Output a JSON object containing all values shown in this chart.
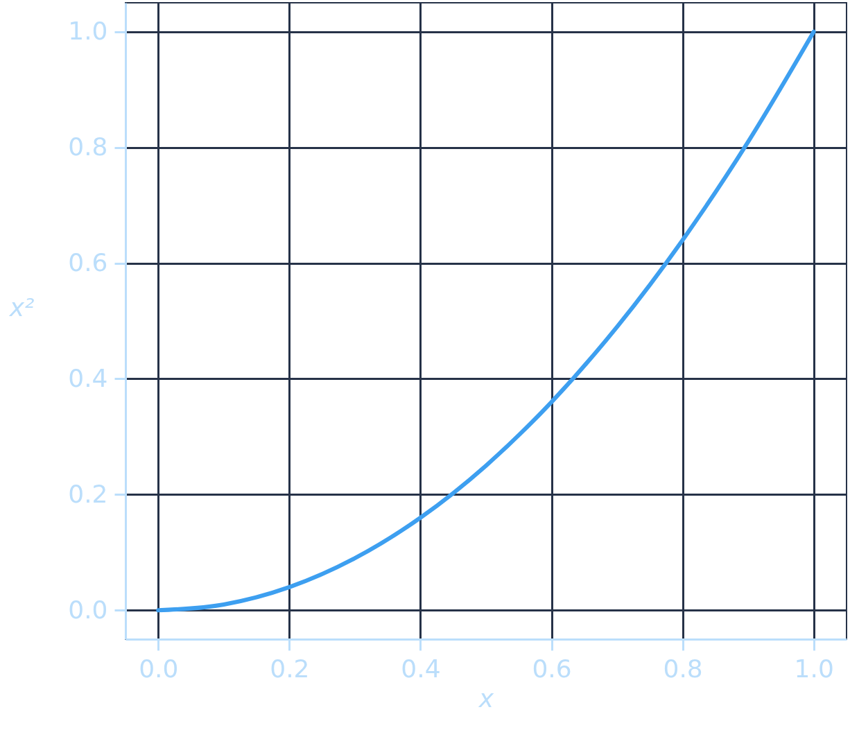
{
  "chart_data": {
    "type": "line",
    "xlabel": "x",
    "ylabel": "x²",
    "x": [
      0,
      0.1,
      0.2,
      0.3,
      0.4,
      0.5,
      0.6,
      0.7,
      0.8,
      0.9,
      1.0
    ],
    "series": [
      {
        "color": "#3d9ff0",
        "values": [
          0,
          0.01,
          0.04,
          0.09,
          0.16,
          0.25,
          0.36,
          0.49,
          0.64,
          0.81,
          1.0
        ]
      }
    ],
    "xlim": [
      -0.05,
      1.05
    ],
    "ylim": [
      -0.05,
      1.05
    ],
    "xticks": [
      {
        "value": 0,
        "label": "0.0"
      },
      {
        "value": 0.2,
        "label": "0.2"
      },
      {
        "value": 0.4,
        "label": "0.4"
      },
      {
        "value": 0.6,
        "label": "0.6"
      },
      {
        "value": 0.8,
        "label": "0.8"
      },
      {
        "value": 1.0,
        "label": "1.0"
      }
    ],
    "yticks": [
      {
        "value": 0,
        "label": "0.0"
      },
      {
        "value": 0.2,
        "label": "0.2"
      },
      {
        "value": 0.4,
        "label": "0.4"
      },
      {
        "value": 0.6,
        "label": "0.6"
      },
      {
        "value": 0.8,
        "label": "0.8"
      },
      {
        "value": 1.0,
        "label": "1.0"
      }
    ],
    "grid": true,
    "marker": "none",
    "line_style": "solid"
  }
}
